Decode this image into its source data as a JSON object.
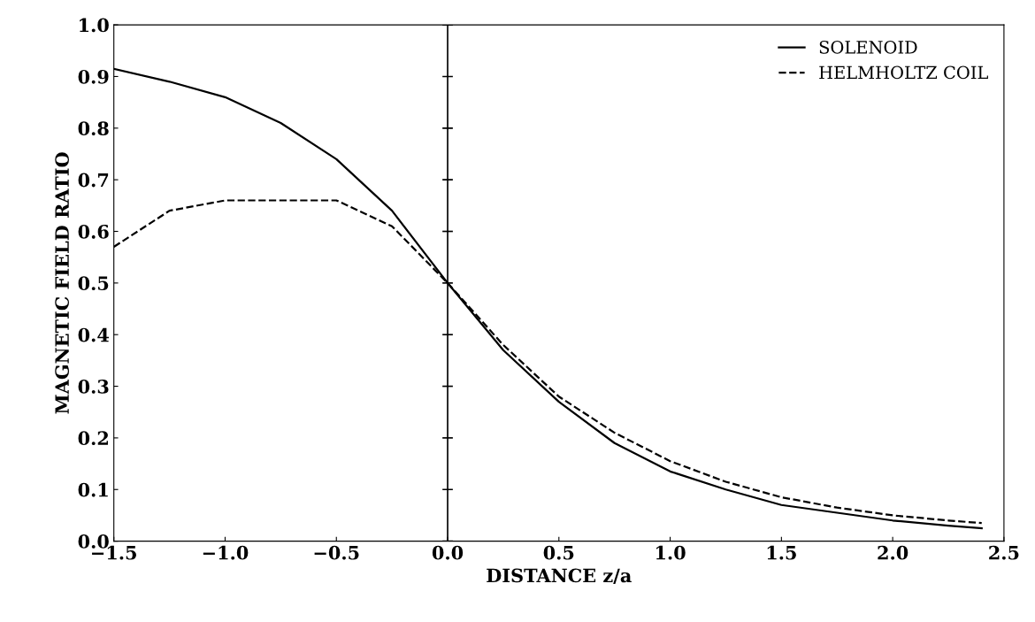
{
  "chart_data": {
    "type": "line",
    "xlabel": "DISTANCE z/a",
    "ylabel": "MAGNETIC FIELD RATIO",
    "xlim": [
      -1.5,
      2.5
    ],
    "ylim": [
      0.0,
      1.0
    ],
    "xticks": [
      {
        "value": -1.5,
        "label": "−1.5"
      },
      {
        "value": -1.0,
        "label": "−1.0"
      },
      {
        "value": -0.5,
        "label": "−0.5"
      },
      {
        "value": 0.0,
        "label": "0.0"
      },
      {
        "value": 0.5,
        "label": "0.5"
      },
      {
        "value": 1.0,
        "label": "1.0"
      },
      {
        "value": 1.5,
        "label": "1.5"
      },
      {
        "value": 2.0,
        "label": "2.0"
      },
      {
        "value": 2.5,
        "label": "2.5"
      }
    ],
    "yticks": [
      {
        "value": 0.0,
        "label": "0.0"
      },
      0.1,
      0.2,
      0.3,
      0.4,
      0.5,
      0.6,
      0.7,
      0.8,
      0.9,
      {
        "value": 1.0,
        "label": "1.0"
      }
    ],
    "x": [
      -1.5,
      -1.25,
      -1.0,
      -0.75,
      -0.5,
      -0.25,
      0.0,
      0.25,
      0.5,
      0.75,
      1.0,
      1.25,
      1.5,
      1.75,
      2.0,
      2.25,
      2.4
    ],
    "series": [
      {
        "name": "SOLENOID",
        "color": "#000000",
        "line_style": "solid",
        "values": [
          0.915,
          0.89,
          0.86,
          0.81,
          0.74,
          0.64,
          0.5,
          0.37,
          0.27,
          0.19,
          0.135,
          0.1,
          0.07,
          0.055,
          0.04,
          0.03,
          0.025
        ]
      },
      {
        "name": "HELMHOLTZ COIL",
        "color": "#000000",
        "line_style": "dashed",
        "values": [
          0.57,
          0.64,
          0.66,
          0.66,
          0.66,
          0.61,
          0.5,
          0.38,
          0.28,
          0.21,
          0.155,
          0.115,
          0.085,
          0.065,
          0.05,
          0.04,
          0.035
        ]
      }
    ],
    "ref_lines": [
      {
        "axis": "x",
        "value": 0.0,
        "color": "#000000",
        "line_style": "solid"
      }
    ],
    "legend": "top right",
    "grid": false,
    "marker": "none"
  }
}
